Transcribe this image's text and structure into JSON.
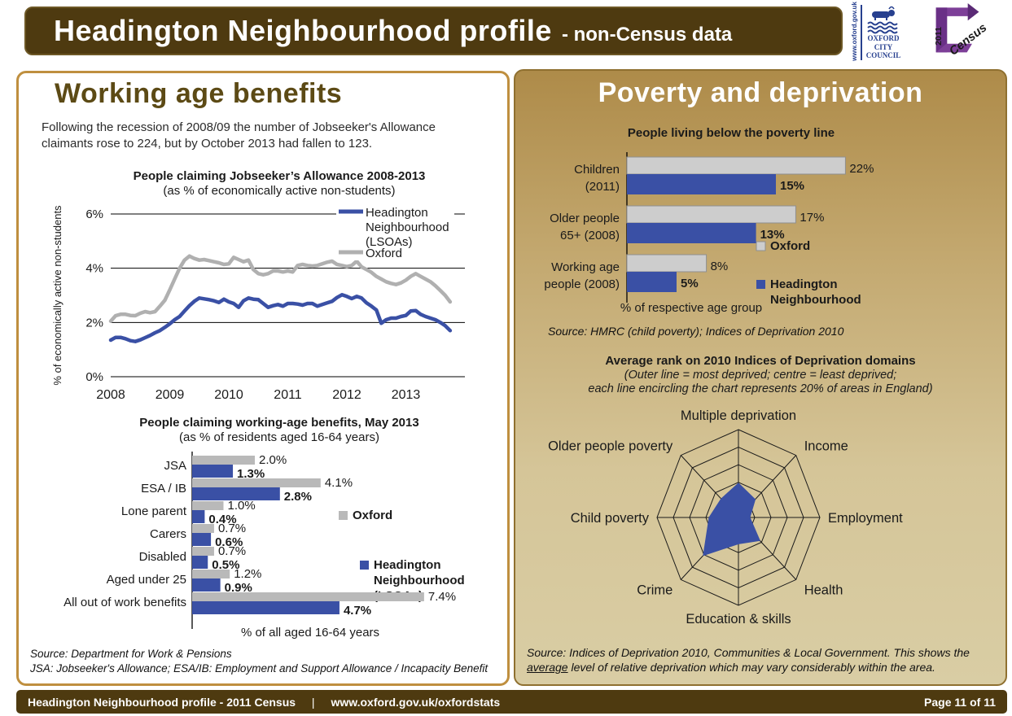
{
  "header": {
    "title": "Headington Neighbourhood profile",
    "subtitle": "- non-Census data",
    "oxford_logo": {
      "url": "www.oxford.gov.uk",
      "name_line1": "OXFORD",
      "name_line2": "CITY",
      "name_line3": "COUNCIL"
    },
    "census_logo": {
      "year": "2011",
      "word": "Census"
    }
  },
  "left": {
    "heading": "Working age benefits",
    "intro": "Following the recession of 2008/09 the number of Jobseeker's Allowance claimants rose to 224, but by October 2013 had fallen to 123.",
    "source_line1": "Source: Department for Work & Pensions",
    "source_line2": "JSA: Jobseeker's Allowance; ESA/IB: Employment and Support Allowance / Incapacity Benefit"
  },
  "right": {
    "heading": "Poverty and deprivation",
    "source1": "Source: HMRC (child poverty); Indices of Deprivation 2010",
    "source2_line1": "Source: Indices of Deprivation 2010, Communities & Local Government.  This shows the",
    "source2_underlined": "average",
    "source2_rest": " level of relative deprivation which may vary considerably within the area."
  },
  "footer": {
    "left_text": "Headington Neighbourhood profile - 2011 Census",
    "separator": "|",
    "url": "www.oxford.gov.uk/oxfordstats",
    "page": "Page 11 of 11"
  },
  "colors": {
    "brand_brown": "#4e3a10",
    "heading_olive": "#5c4a15",
    "panel_gold_top": "#ae8b49",
    "panel_gold_bottom": "#d9cda4",
    "series_blue": "#3a50a5",
    "series_grey": "#b0b0b0"
  },
  "chart_data": [
    {
      "id": "jsa_trend",
      "type": "line",
      "title": "People claiming Jobseeker’s Allowance 2008-2013",
      "subtitle": "(as % of economically active non-students)",
      "ylabel": "% of economically active non-students",
      "xlabel": "",
      "ylim": [
        0,
        6
      ],
      "y_ticks": [
        0,
        2,
        4,
        6
      ],
      "x_tick_labels": [
        "2008",
        "2009",
        "2010",
        "2011",
        "2012",
        "2013"
      ],
      "x_months_total": 72,
      "x_note": "monthly values Jan 2008 - Oct 2013, estimated from chart",
      "grid": true,
      "legend_position": "top-right",
      "series": [
        {
          "name": "Headington Neighbourhood (LSOAs)",
          "legend_lines": [
            "Headington",
            "Neighbourhood",
            "(LSOAs)"
          ],
          "color": "#3a50a5",
          "values": [
            1.35,
            1.45,
            1.45,
            1.4,
            1.33,
            1.3,
            1.36,
            1.44,
            1.52,
            1.62,
            1.7,
            1.82,
            1.95,
            2.1,
            2.22,
            2.42,
            2.62,
            2.78,
            2.9,
            2.87,
            2.84,
            2.8,
            2.74,
            2.86,
            2.76,
            2.7,
            2.56,
            2.8,
            2.9,
            2.86,
            2.84,
            2.7,
            2.56,
            2.62,
            2.66,
            2.6,
            2.7,
            2.7,
            2.68,
            2.64,
            2.7,
            2.7,
            2.6,
            2.66,
            2.72,
            2.78,
            2.92,
            3.02,
            2.96,
            2.88,
            2.96,
            2.9,
            2.72,
            2.6,
            2.46,
            1.97,
            2.1,
            2.16,
            2.16,
            2.22,
            2.26,
            2.42,
            2.44,
            2.3,
            2.22,
            2.16,
            2.1,
            2.0,
            1.88,
            1.7
          ]
        },
        {
          "name": "Oxford",
          "legend_lines": [
            "Oxford"
          ],
          "color": "#b0b0b0",
          "values": [
            2.05,
            2.25,
            2.3,
            2.3,
            2.26,
            2.25,
            2.34,
            2.4,
            2.36,
            2.4,
            2.6,
            2.82,
            3.2,
            3.6,
            4.0,
            4.3,
            4.45,
            4.36,
            4.3,
            4.32,
            4.28,
            4.24,
            4.2,
            4.14,
            4.16,
            4.4,
            4.32,
            4.24,
            4.3,
            3.95,
            3.8,
            3.76,
            3.8,
            3.9,
            3.9,
            3.86,
            3.9,
            3.86,
            4.1,
            4.14,
            4.1,
            4.08,
            4.1,
            4.16,
            4.22,
            4.26,
            4.14,
            4.1,
            4.06,
            4.1,
            4.26,
            4.05,
            3.95,
            3.85,
            3.7,
            3.6,
            3.5,
            3.44,
            3.4,
            3.46,
            3.56,
            3.7,
            3.8,
            3.7,
            3.6,
            3.5,
            3.35,
            3.18,
            3.0,
            2.76
          ]
        }
      ]
    },
    {
      "id": "benefits",
      "type": "bar",
      "title": "People claiming working-age benefits, May 2013",
      "subtitle": "(as % of residents aged 16-64 years)",
      "xlabel": "% of all aged 16-64 years",
      "categories": [
        "JSA",
        "ESA / IB",
        "Lone parent",
        "Carers",
        "Disabled",
        "Aged under 25",
        "All out of work benefits"
      ],
      "xmax": 8,
      "series": [
        {
          "name": "Oxford",
          "legend_lines": [
            "Oxford"
          ],
          "color": "#b9b9b9",
          "values": [
            2.0,
            4.1,
            1.0,
            0.7,
            0.7,
            1.2,
            7.4
          ],
          "labels": [
            "2.0%",
            "4.1%",
            "1.0%",
            "0.7%",
            "0.7%",
            "1.2%",
            "7.4%"
          ]
        },
        {
          "name": "Headington Neighbourhood (LSOAs)",
          "legend_lines": [
            "Headington",
            "Neighbourhood",
            "(LSOAs)"
          ],
          "color": "#3a50a5",
          "values": [
            1.3,
            2.8,
            0.4,
            0.6,
            0.5,
            0.9,
            4.7
          ],
          "labels": [
            "1.3%",
            "2.8%",
            "0.4%",
            "0.6%",
            "0.5%",
            "0.9%",
            "4.7%"
          ]
        }
      ]
    },
    {
      "id": "poverty",
      "type": "bar",
      "title": "People living below the poverty line",
      "subtitle": "",
      "xlabel": "% of respective age group",
      "categories": [
        "Children\n(2011)",
        "Older people\n65+ (2008)",
        "Working age\npeople (2008)"
      ],
      "xmax": 24,
      "series": [
        {
          "name": "Oxford",
          "legend_lines": [
            "Oxford"
          ],
          "color": "#cdcdcd",
          "values": [
            22,
            17,
            8
          ],
          "labels": [
            "22%",
            "17%",
            "8%"
          ]
        },
        {
          "name": "Headington Neighbourhood",
          "legend_lines": [
            "Headington",
            "Neighbourhood"
          ],
          "color": "#3a50a5",
          "values": [
            15,
            13,
            5
          ],
          "labels": [
            "15%",
            "13%",
            "5%"
          ]
        }
      ]
    },
    {
      "id": "deprivation_radar",
      "type": "radar",
      "title": "Average rank on 2010 Indices of Deprivation domains",
      "subtitle_lines": [
        "(Outer line = most deprived; centre = least deprived;",
        "each line encircling the chart represents 20% of areas in England)"
      ],
      "axes": [
        "Multiple deprivation",
        "Income",
        "Employment",
        "Health",
        "Education & skills",
        "Crime",
        "Child poverty",
        "Older people poverty"
      ],
      "rings": 5,
      "ring_note": "each ring = 20% of areas in England; outer = most deprived",
      "values_fraction_of_outer": [
        0.39,
        0.29,
        0.14,
        0.37,
        0.3,
        0.61,
        0.36,
        0.3
      ],
      "fill_color": "#3a50a5"
    }
  ]
}
